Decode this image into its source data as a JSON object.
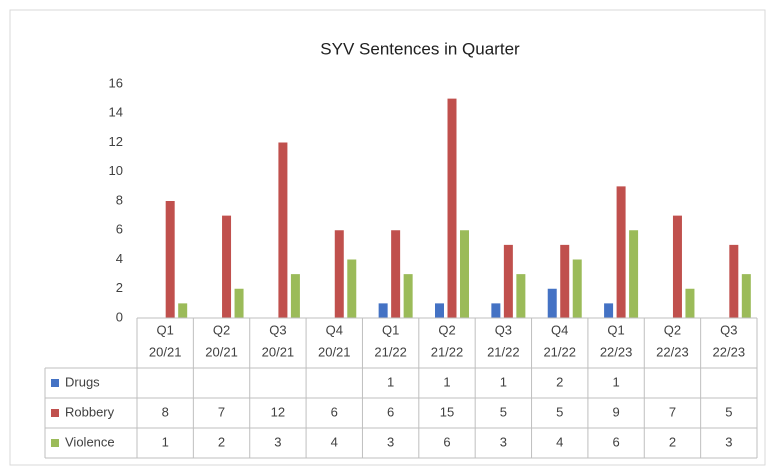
{
  "chart_data": {
    "type": "bar",
    "title": "SYV Sentences in Quarter",
    "categories": [
      [
        "Q1",
        "20/21"
      ],
      [
        "Q2",
        "20/21"
      ],
      [
        "Q3",
        "20/21"
      ],
      [
        "Q4",
        "20/21"
      ],
      [
        "Q1",
        "21/22"
      ],
      [
        "Q2",
        "21/22"
      ],
      [
        "Q3",
        "21/22"
      ],
      [
        "Q4",
        "21/22"
      ],
      [
        "Q1",
        "22/23"
      ],
      [
        "Q2",
        "22/23"
      ],
      [
        "Q3",
        "22/23"
      ]
    ],
    "series": [
      {
        "name": "Drugs",
        "color": "#4472c4",
        "values": [
          null,
          null,
          null,
          null,
          1,
          1,
          1,
          2,
          1,
          null,
          null
        ]
      },
      {
        "name": "Robbery",
        "color": "#c0504d",
        "values": [
          8,
          7,
          12,
          6,
          6,
          15,
          5,
          5,
          9,
          7,
          5
        ]
      },
      {
        "name": "Violence",
        "color": "#9bbb59",
        "values": [
          1,
          2,
          3,
          4,
          3,
          6,
          3,
          4,
          6,
          2,
          3
        ]
      }
    ],
    "ylim": [
      0,
      16
    ],
    "yticks": [
      0,
      2,
      4,
      6,
      8,
      10,
      12,
      14,
      16
    ],
    "grid": false,
    "data_table": true
  }
}
